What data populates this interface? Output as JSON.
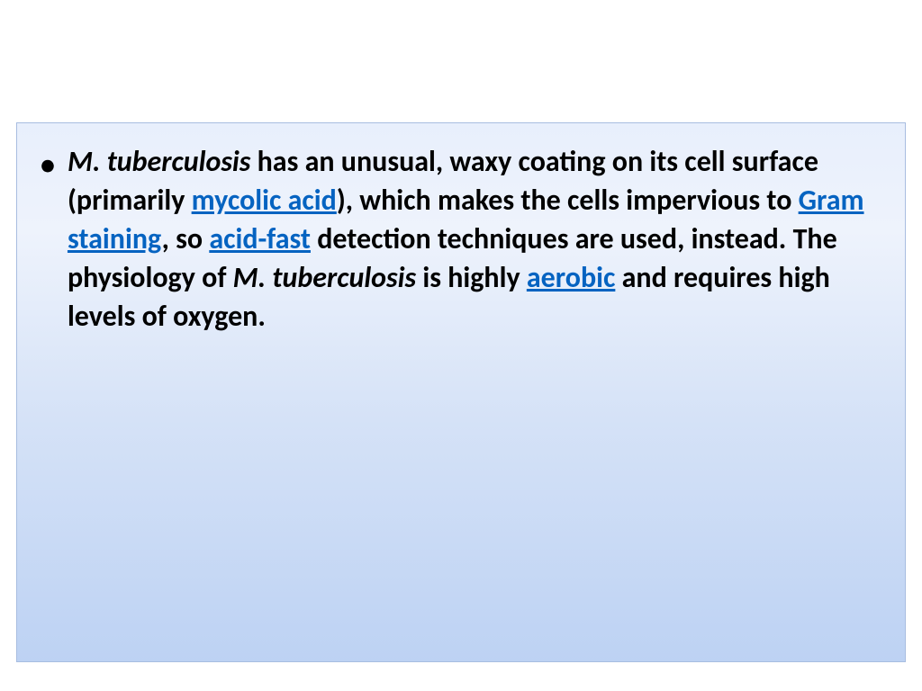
{
  "slide": {
    "background_color": "#ffffff",
    "content_box": {
      "gradient_top": "#e8effc",
      "gradient_bottom": "#bdd2f3",
      "border_color": "#a8bde0",
      "text_color": "#000000",
      "link_color": "#0563c1",
      "font_size_pt": 24,
      "font_weight": "bold"
    },
    "bullet": {
      "char": "•",
      "segments": [
        {
          "text": "M. tuberculosis",
          "italic": true,
          "link": false
        },
        {
          "text": " has an unusual, waxy coating on its cell surface (primarily ",
          "italic": false,
          "link": false
        },
        {
          "text": "mycolic acid",
          "italic": false,
          "link": true
        },
        {
          "text": "), which makes the cells impervious to ",
          "italic": false,
          "link": false
        },
        {
          "text": "Gram staining",
          "italic": false,
          "link": true
        },
        {
          "text": ", so ",
          "italic": false,
          "link": false
        },
        {
          "text": "acid-fast",
          "italic": false,
          "link": true
        },
        {
          "text": " detection techniques are used, instead. The physiology of ",
          "italic": false,
          "link": false
        },
        {
          "text": "M. tuberculosis",
          "italic": true,
          "link": false
        },
        {
          "text": " is highly ",
          "italic": false,
          "link": false
        },
        {
          "text": "aerobic",
          "italic": false,
          "link": true
        },
        {
          "text": " and requires high levels of oxygen.",
          "italic": false,
          "link": false
        }
      ]
    }
  }
}
